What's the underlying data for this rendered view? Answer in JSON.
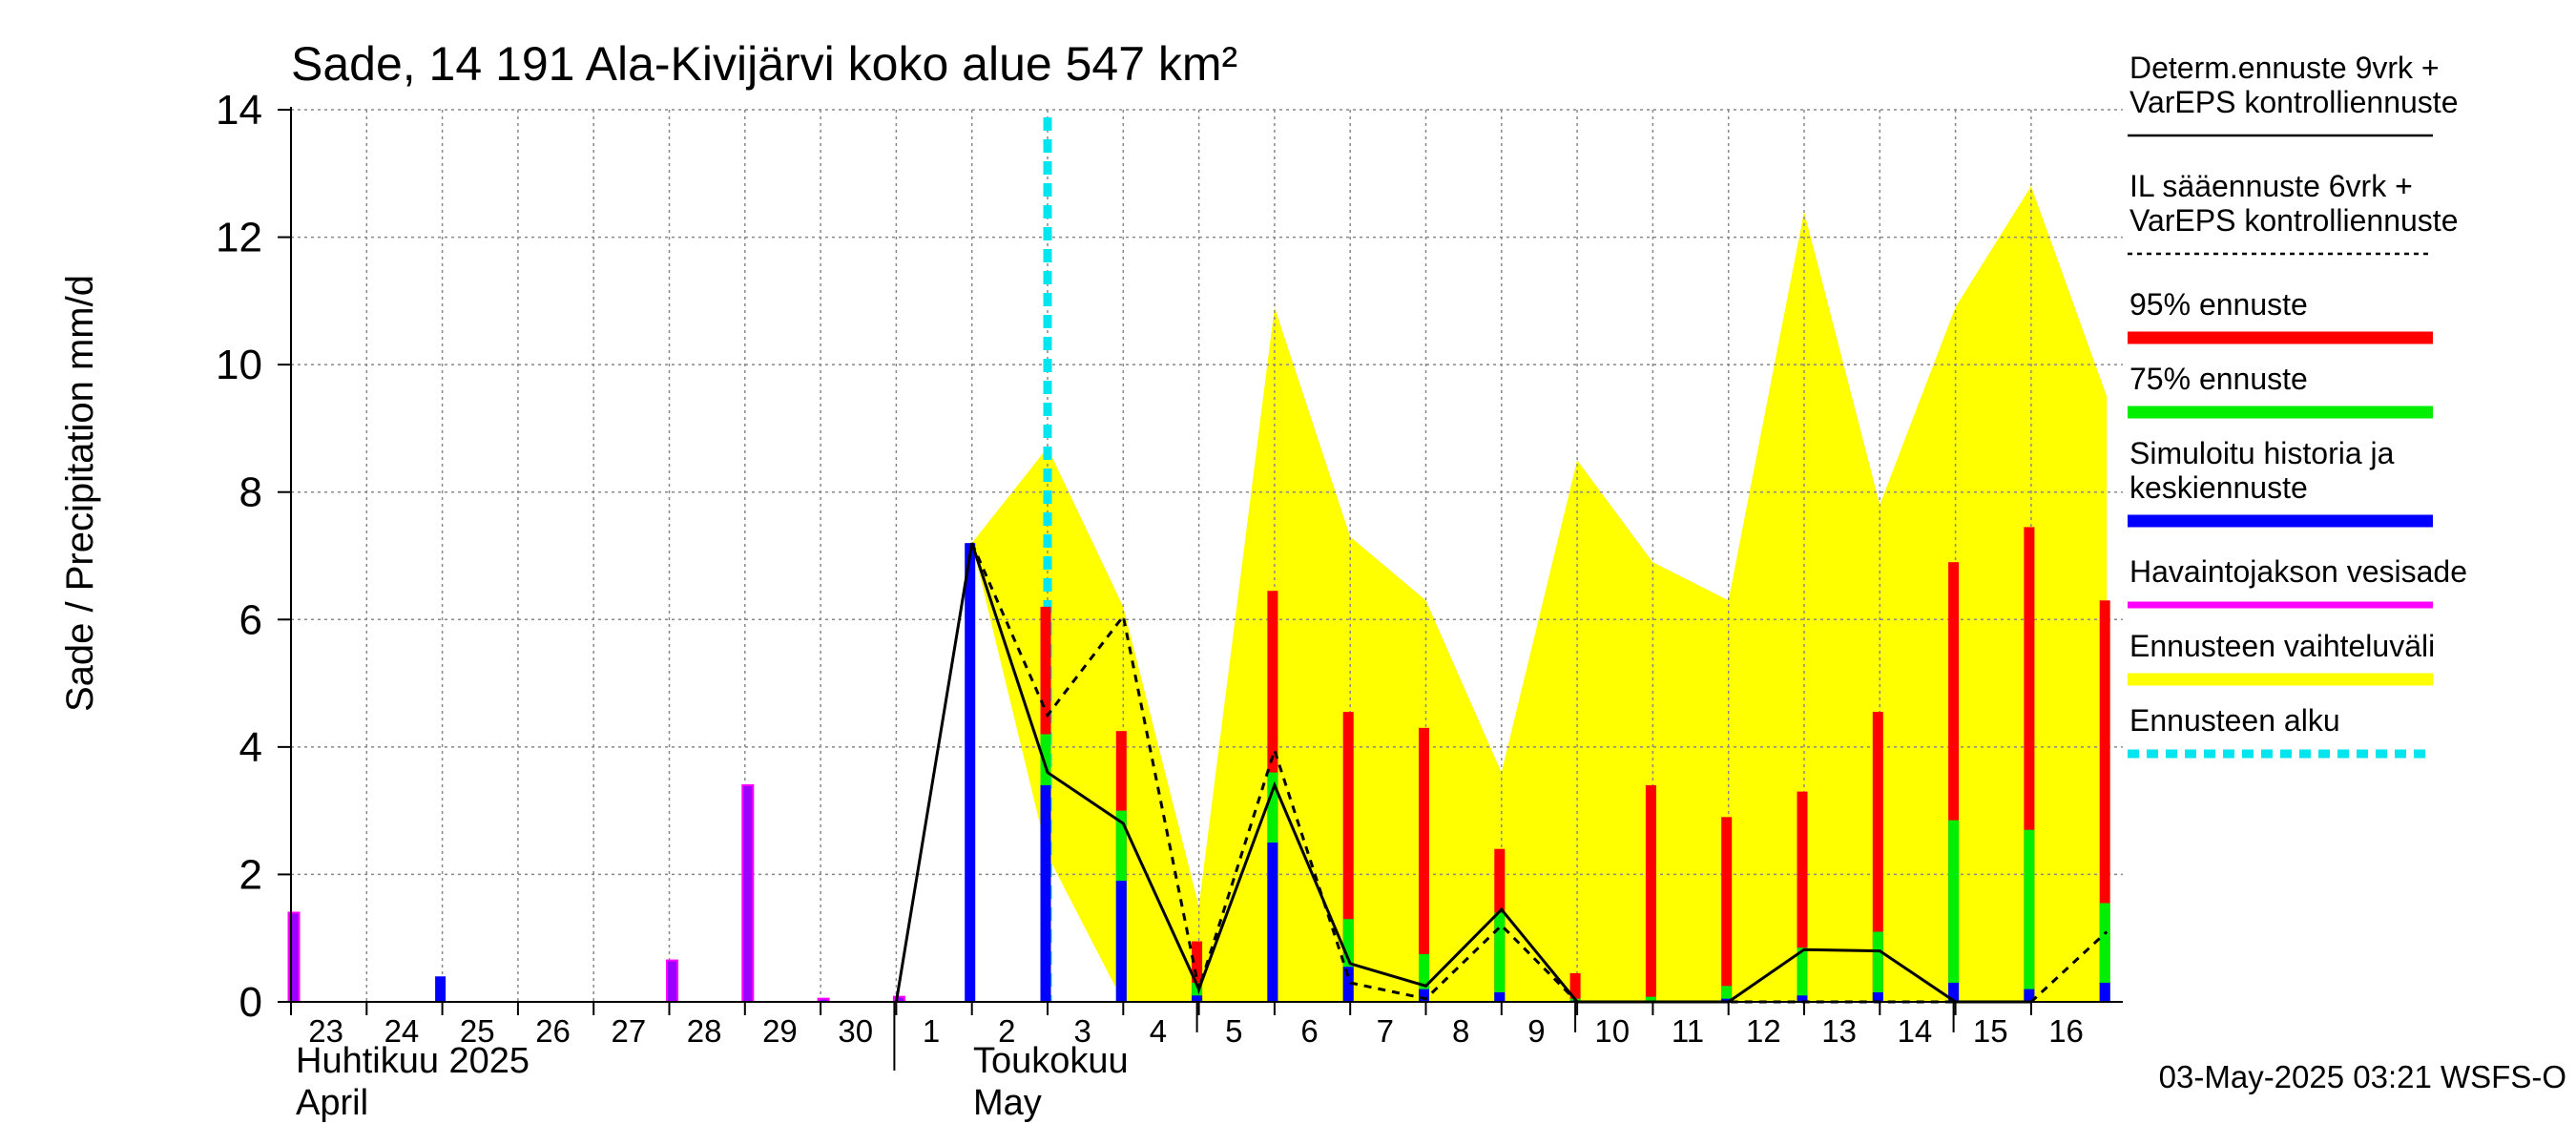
{
  "chart_data": {
    "type": "bar",
    "title": "Sade, 14 191 Ala-Kivijärvi koko alue 547 km²",
    "ylabel": "Sade / Precipitation   mm/d",
    "ylim": [
      0,
      14
    ],
    "yticks": [
      0,
      2,
      4,
      6,
      8,
      10,
      12,
      14
    ],
    "grid": true,
    "x_day_labels": [
      "23",
      "24",
      "25",
      "26",
      "27",
      "28",
      "29",
      "30",
      "1",
      "2",
      "3",
      "4",
      "5",
      "6",
      "7",
      "8",
      "9",
      "10",
      "11",
      "12",
      "13",
      "14",
      "15",
      "16"
    ],
    "month_labels": {
      "april_fi": "Huhtikuu  2025",
      "april_en": "April",
      "may_fi": "Toukokuu",
      "may_en": "May"
    },
    "forecast_start_day_index": 10,
    "observed_precip": [
      {
        "day_index": 0,
        "value": 1.4
      },
      {
        "day_index": 5,
        "value": 0.65
      },
      {
        "day_index": 6,
        "value": 3.4
      },
      {
        "day_index": 7,
        "value": 0.05
      },
      {
        "day_index": 8,
        "value": 0.08
      }
    ],
    "simulated_bars": [
      {
        "day_index": 2,
        "mean": 0.4
      },
      {
        "day_index": 9,
        "mean": 7.2
      },
      {
        "day_index": 10,
        "mean": 3.4,
        "p75": 4.2,
        "p95": 6.2
      },
      {
        "day_index": 11,
        "mean": 1.9,
        "p75": 3.0,
        "p95": 4.25
      },
      {
        "day_index": 12,
        "mean": 0.1,
        "p75": 0.3,
        "p95": 0.95
      },
      {
        "day_index": 13,
        "mean": 2.5,
        "p75": 3.6,
        "p95": 6.45
      },
      {
        "day_index": 14,
        "mean": 0.55,
        "p75": 1.3,
        "p95": 4.55
      },
      {
        "day_index": 15,
        "mean": 0.2,
        "p75": 0.75,
        "p95": 4.3
      },
      {
        "day_index": 16,
        "mean": 0.15,
        "p75": 1.4,
        "p95": 2.4
      },
      {
        "day_index": 17,
        "mean": 0.02,
        "p75": 0.05,
        "p95": 0.45
      },
      {
        "day_index": 18,
        "mean": 0.02,
        "p75": 0.08,
        "p95": 3.4
      },
      {
        "day_index": 19,
        "mean": 0.05,
        "p75": 0.25,
        "p95": 2.9
      },
      {
        "day_index": 20,
        "mean": 0.1,
        "p75": 0.85,
        "p95": 3.3
      },
      {
        "day_index": 21,
        "mean": 0.15,
        "p75": 1.1,
        "p95": 4.55
      },
      {
        "day_index": 22,
        "mean": 0.3,
        "p75": 2.85,
        "p95": 6.9
      },
      {
        "day_index": 23,
        "mean": 0.2,
        "p75": 2.7,
        "p95": 7.45
      },
      {
        "day_index": 24,
        "mean": 0.3,
        "p75": 1.55,
        "p95": 6.3
      }
    ],
    "deterministic_line": [
      [
        8,
        0
      ],
      [
        9,
        7.2
      ],
      [
        10,
        3.6
      ],
      [
        11,
        2.8
      ],
      [
        12,
        0.2
      ],
      [
        13,
        3.4
      ],
      [
        14,
        0.6
      ],
      [
        15,
        0.25
      ],
      [
        16,
        1.45
      ],
      [
        17,
        0
      ],
      [
        18,
        0
      ],
      [
        19,
        0
      ],
      [
        20,
        0.82
      ],
      [
        21,
        0.8
      ],
      [
        22,
        0
      ],
      [
        23,
        0
      ]
    ],
    "il_forecast_line": [
      [
        9,
        7.2
      ],
      [
        10,
        4.5
      ],
      [
        11,
        6.05
      ],
      [
        12,
        0.2
      ],
      [
        13,
        3.95
      ],
      [
        14,
        0.3
      ],
      [
        15,
        0.05
      ],
      [
        16,
        1.2
      ],
      [
        17,
        0
      ],
      [
        18,
        0
      ],
      [
        19,
        0
      ],
      [
        20,
        0
      ],
      [
        21,
        0
      ],
      [
        22,
        0
      ],
      [
        23,
        0
      ],
      [
        24,
        1.1
      ]
    ],
    "ensemble_range_upper": [
      [
        9,
        7.2
      ],
      [
        10,
        8.7
      ],
      [
        11,
        6.2
      ],
      [
        12,
        1.5
      ],
      [
        13,
        10.9
      ],
      [
        14,
        7.3
      ],
      [
        15,
        6.3
      ],
      [
        16,
        3.6
      ],
      [
        17,
        8.5
      ],
      [
        18,
        6.9
      ],
      [
        19,
        6.3
      ],
      [
        20,
        12.4
      ],
      [
        21,
        7.8
      ],
      [
        22,
        10.9
      ],
      [
        23,
        12.8
      ],
      [
        24,
        9.5
      ]
    ],
    "ensemble_range_lower": [
      [
        9,
        7.2
      ],
      [
        10,
        2.3
      ],
      [
        11,
        0
      ],
      [
        12,
        0
      ],
      [
        13,
        0
      ],
      [
        14,
        0
      ],
      [
        15,
        0
      ],
      [
        16,
        0
      ],
      [
        17,
        0
      ],
      [
        18,
        0
      ],
      [
        19,
        0
      ],
      [
        20,
        0
      ],
      [
        21,
        0
      ],
      [
        22,
        0
      ],
      [
        23,
        0
      ],
      [
        24,
        0
      ]
    ],
    "legend": [
      {
        "label": "Determ.ennuste 9vrk  +\nVarEPS kontrolliennuste",
        "style": "solid-thin",
        "color": "#000000"
      },
      {
        "label": "IL sääennuste 6vrk  +\n  VarEPS kontrolliennuste",
        "style": "dashed-thin",
        "color": "#000000"
      },
      {
        "label": "95% ennuste",
        "style": "thick",
        "color": "#ff0000"
      },
      {
        "label": "75% ennuste",
        "style": "thick",
        "color": "#00ee00"
      },
      {
        "label": "Simuloitu historia ja\nkeskiennuste",
        "style": "thick",
        "color": "#0000ff"
      },
      {
        "label": "Havaintojakson vesisade",
        "style": "medium",
        "color": "#ff00ff"
      },
      {
        "label": "Ennusteen vaihteluväli",
        "style": "thick",
        "color": "#ffff00"
      },
      {
        "label": "Ennusteen alku",
        "style": "dashed-thick",
        "color": "#00e5ee"
      }
    ],
    "colors": {
      "p95": "#ff0000",
      "p75": "#00ee00",
      "mean": "#0000ff",
      "observed": "#ff00ff",
      "observed_fill": "#9900ff",
      "range": "#ffff00",
      "forecast_start": "#00e5ee"
    },
    "timestamp": "03-May-2025 03:21 WSFS-O"
  }
}
